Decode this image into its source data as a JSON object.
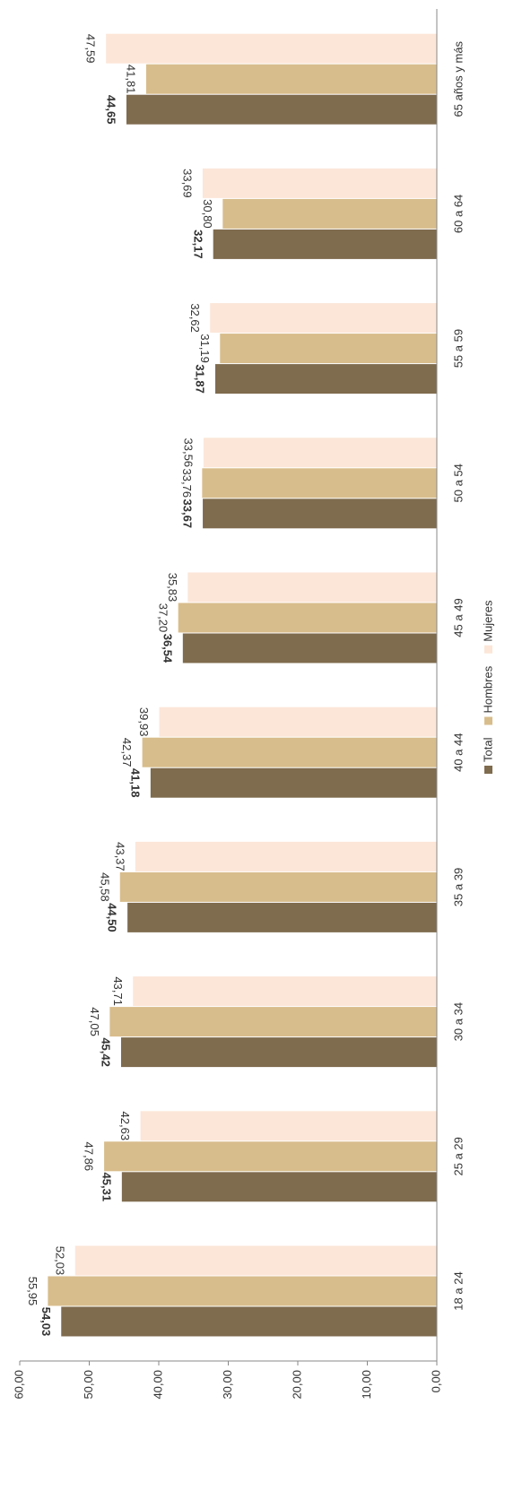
{
  "chart_data": {
    "type": "bar",
    "orientation": "rotated",
    "categories": [
      "18 a 24",
      "25 a 29",
      "30 a 34",
      "35 a 39",
      "40 a 44",
      "45 a 49",
      "50 a 54",
      "55 a 59",
      "60 a 64",
      "65 años y más"
    ],
    "series": [
      {
        "name": "Total",
        "color": "#7f6b4e",
        "bold_labels": true,
        "values": [
          54.03,
          45.31,
          45.42,
          44.5,
          41.18,
          36.54,
          33.67,
          31.87,
          32.17,
          44.65
        ],
        "value_labels": [
          "54,03",
          "45,31",
          "45,42",
          "44,50",
          "41,18",
          "36,54",
          "33,67",
          "31,87",
          "32,17",
          "44,65"
        ]
      },
      {
        "name": "Hombres",
        "color": "#d8bd8c",
        "values": [
          55.95,
          47.86,
          47.05,
          45.58,
          42.37,
          37.2,
          33.76,
          31.19,
          30.8,
          41.81
        ],
        "value_labels": [
          "55,95",
          "47,86",
          "47,05",
          "45,58",
          "42,37",
          "37,20",
          "33,76",
          "31,19",
          "30,80",
          "41,81"
        ]
      },
      {
        "name": "Mujeres",
        "color": "#fce6d8",
        "values": [
          52.03,
          42.63,
          43.71,
          43.37,
          39.93,
          35.83,
          33.56,
          32.62,
          33.69,
          47.59
        ],
        "value_labels": [
          "52,03",
          "42,63",
          "43,71",
          "43,37",
          "39,93",
          "35,83",
          "33,56",
          "32,62",
          "33,69",
          "47,59"
        ]
      }
    ],
    "ylim": [
      0,
      60
    ],
    "yticks": [
      {
        "value": 0,
        "label": "0,00"
      },
      {
        "value": 10,
        "label": "10,00"
      },
      {
        "value": 20,
        "label": "20,00"
      },
      {
        "value": 30,
        "label": "30,00"
      },
      {
        "value": 40,
        "label": "40,00"
      },
      {
        "value": 50,
        "label": "50,00"
      },
      {
        "value": 60,
        "label": "60,00"
      }
    ],
    "legend": "bottom"
  }
}
